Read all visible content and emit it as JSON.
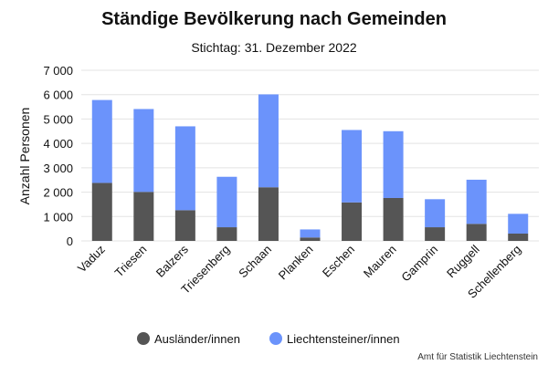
{
  "chart_data": {
    "type": "bar",
    "stacked": true,
    "title": "Ständige Bevölkerung nach Gemeinden",
    "subtitle": "Stichtag: 31. Dezember 2022",
    "ylabel": "Anzahl Personen",
    "xlabel": "",
    "ylim": [
      0,
      7000
    ],
    "yticks": [
      0,
      1000,
      2000,
      3000,
      4000,
      5000,
      6000,
      7000
    ],
    "ytick_labels": [
      "0",
      "1 000",
      "2 000",
      "3 000",
      "4 000",
      "5 000",
      "6 000",
      "7 000"
    ],
    "grid": true,
    "legend_position": "bottom",
    "categories": [
      "Vaduz",
      "Triesen",
      "Balzers",
      "Triesenberg",
      "Schaan",
      "Planken",
      "Eschen",
      "Mauren",
      "Gamprin",
      "Ruggell",
      "Schellenberg"
    ],
    "series": [
      {
        "name": "Ausländer/innen",
        "color": "#555555",
        "values": [
          2380,
          2010,
          1260,
          560,
          2200,
          140,
          1580,
          1760,
          560,
          700,
          300
        ]
      },
      {
        "name": "Liechtensteiner/innen",
        "color": "#6b93fb",
        "values": [
          3400,
          3400,
          3440,
          2070,
          3810,
          330,
          2970,
          2740,
          1150,
          1810,
          810
        ]
      }
    ],
    "source": "Amt für Statistik Liechtenstein"
  }
}
